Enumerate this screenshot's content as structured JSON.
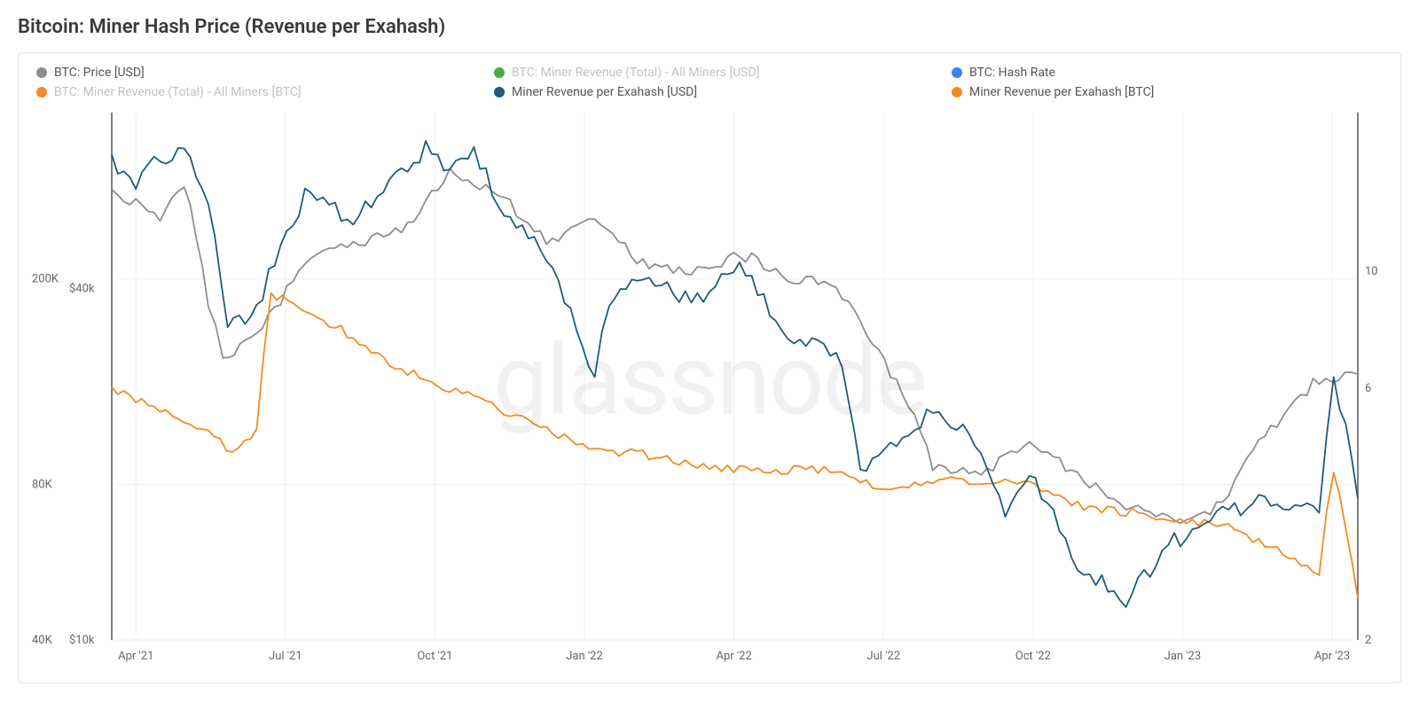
{
  "title": "Bitcoin: Miner Hash Price (Revenue per Exahash)",
  "watermark": "glassnode",
  "chart": {
    "type": "line",
    "background_color": "#ffffff",
    "grid_color": "#f0f0f0",
    "border_color": "#555555",
    "text_color": "#666666",
    "title_fontsize": 22,
    "label_fontsize": 13,
    "line_width": 1.8,
    "x_axis": {
      "ticks": [
        "Apr '21",
        "Jul '21",
        "Oct '21",
        "Jan '22",
        "Apr '22",
        "Jul '22",
        "Oct '22",
        "Jan '23",
        "Apr '23"
      ]
    },
    "y_left_outer": {
      "scale": "log",
      "min": 40000,
      "max": 420000,
      "ticks": [
        {
          "v": 40000,
          "label": "40K"
        },
        {
          "v": 80000,
          "label": "80K"
        },
        {
          "v": 200000,
          "label": "200K"
        }
      ]
    },
    "y_left_inner": {
      "scale": "log",
      "min": 10000,
      "max": 80000,
      "ticks": [
        {
          "v": 10000,
          "label": "$10k"
        },
        {
          "v": 40000,
          "label": "$40k"
        }
      ]
    },
    "y_right": {
      "scale": "log",
      "min": 2,
      "max": 20,
      "ticks": [
        {
          "v": 2,
          "label": "2"
        },
        {
          "v": 6,
          "label": "6"
        },
        {
          "v": 10,
          "label": "10"
        }
      ]
    },
    "legend": [
      {
        "label": "BTC: Price [USD]",
        "color": "#8e8e8e",
        "dim": false
      },
      {
        "label": "BTC: Miner Revenue (Total) - All Miners [USD]",
        "color": "#44b044",
        "dim": true
      },
      {
        "label": "BTC: Hash Rate",
        "color": "#3b82f6",
        "dim": false
      },
      {
        "label": "BTC: Miner Revenue (Total) - All Miners [BTC]",
        "color": "#f48a2c",
        "dim": true
      },
      {
        "label": "Miner Revenue per Exahash [USD]",
        "color": "#1f5b7a",
        "dim": false
      },
      {
        "label": "Miner Revenue per Exahash [BTC]",
        "color": "#f58b1f",
        "dim": false
      }
    ],
    "series": {
      "btc_price_usd": {
        "color": "#8e8e8e",
        "axis": "left_inner",
        "x": [
          0,
          0.5,
          1,
          1.5,
          2,
          2.3,
          3,
          3.5,
          4,
          5,
          6,
          7,
          8,
          9,
          10,
          11,
          12,
          13,
          14,
          15,
          16,
          17,
          18,
          19,
          20,
          21,
          22,
          23,
          24,
          25,
          25.8
        ],
        "y": [
          58000,
          56000,
          52000,
          60000,
          38000,
          30000,
          34000,
          38000,
          44000,
          48000,
          50000,
          63000,
          58000,
          48000,
          52000,
          44000,
          42000,
          46000,
          42000,
          40000,
          30000,
          20000,
          19000,
          22000,
          19000,
          17000,
          16000,
          17000,
          23000,
          28000,
          28500
        ]
      },
      "miner_rev_usd": {
        "color": "#1f5b7a",
        "axis": "left_outer",
        "x": [
          0,
          0.5,
          1,
          1.5,
          2,
          2.4,
          3,
          3.5,
          4,
          5,
          6,
          6.5,
          7,
          7.5,
          8,
          9,
          10,
          10.3,
          11,
          12,
          13,
          14,
          15,
          15.5,
          16,
          17,
          18,
          18.5,
          19,
          20,
          21,
          22,
          23,
          24,
          25,
          25.3,
          25.8
        ],
        "y": [
          340000,
          310000,
          340000,
          360000,
          280000,
          160000,
          175000,
          230000,
          290000,
          260000,
          320000,
          360000,
          320000,
          360000,
          280000,
          220000,
          125000,
          180000,
          200000,
          180000,
          210000,
          155000,
          145000,
          85000,
          95000,
          110000,
          95000,
          70000,
          85000,
          55000,
          48000,
          62000,
          70000,
          75000,
          70000,
          130000,
          75000
        ]
      },
      "miner_rev_btc": {
        "color": "#f58b1f",
        "axis": "right",
        "x": [
          0,
          1,
          2,
          2.5,
          3,
          3.3,
          4,
          5,
          6,
          7,
          8,
          9,
          10,
          11,
          12,
          13,
          14,
          15,
          16,
          17,
          18,
          19,
          20,
          21,
          22,
          23,
          24,
          25,
          25.3,
          25.8
        ],
        "y": [
          6.0,
          5.5,
          5.0,
          4.5,
          5.0,
          9.0,
          8.5,
          7.5,
          6.5,
          6.0,
          5.5,
          5.0,
          4.6,
          4.5,
          4.3,
          4.2,
          4.2,
          4.2,
          3.8,
          4.0,
          4.0,
          4.0,
          3.6,
          3.5,
          3.4,
          3.3,
          3.0,
          2.7,
          4.2,
          2.4
        ]
      }
    }
  }
}
